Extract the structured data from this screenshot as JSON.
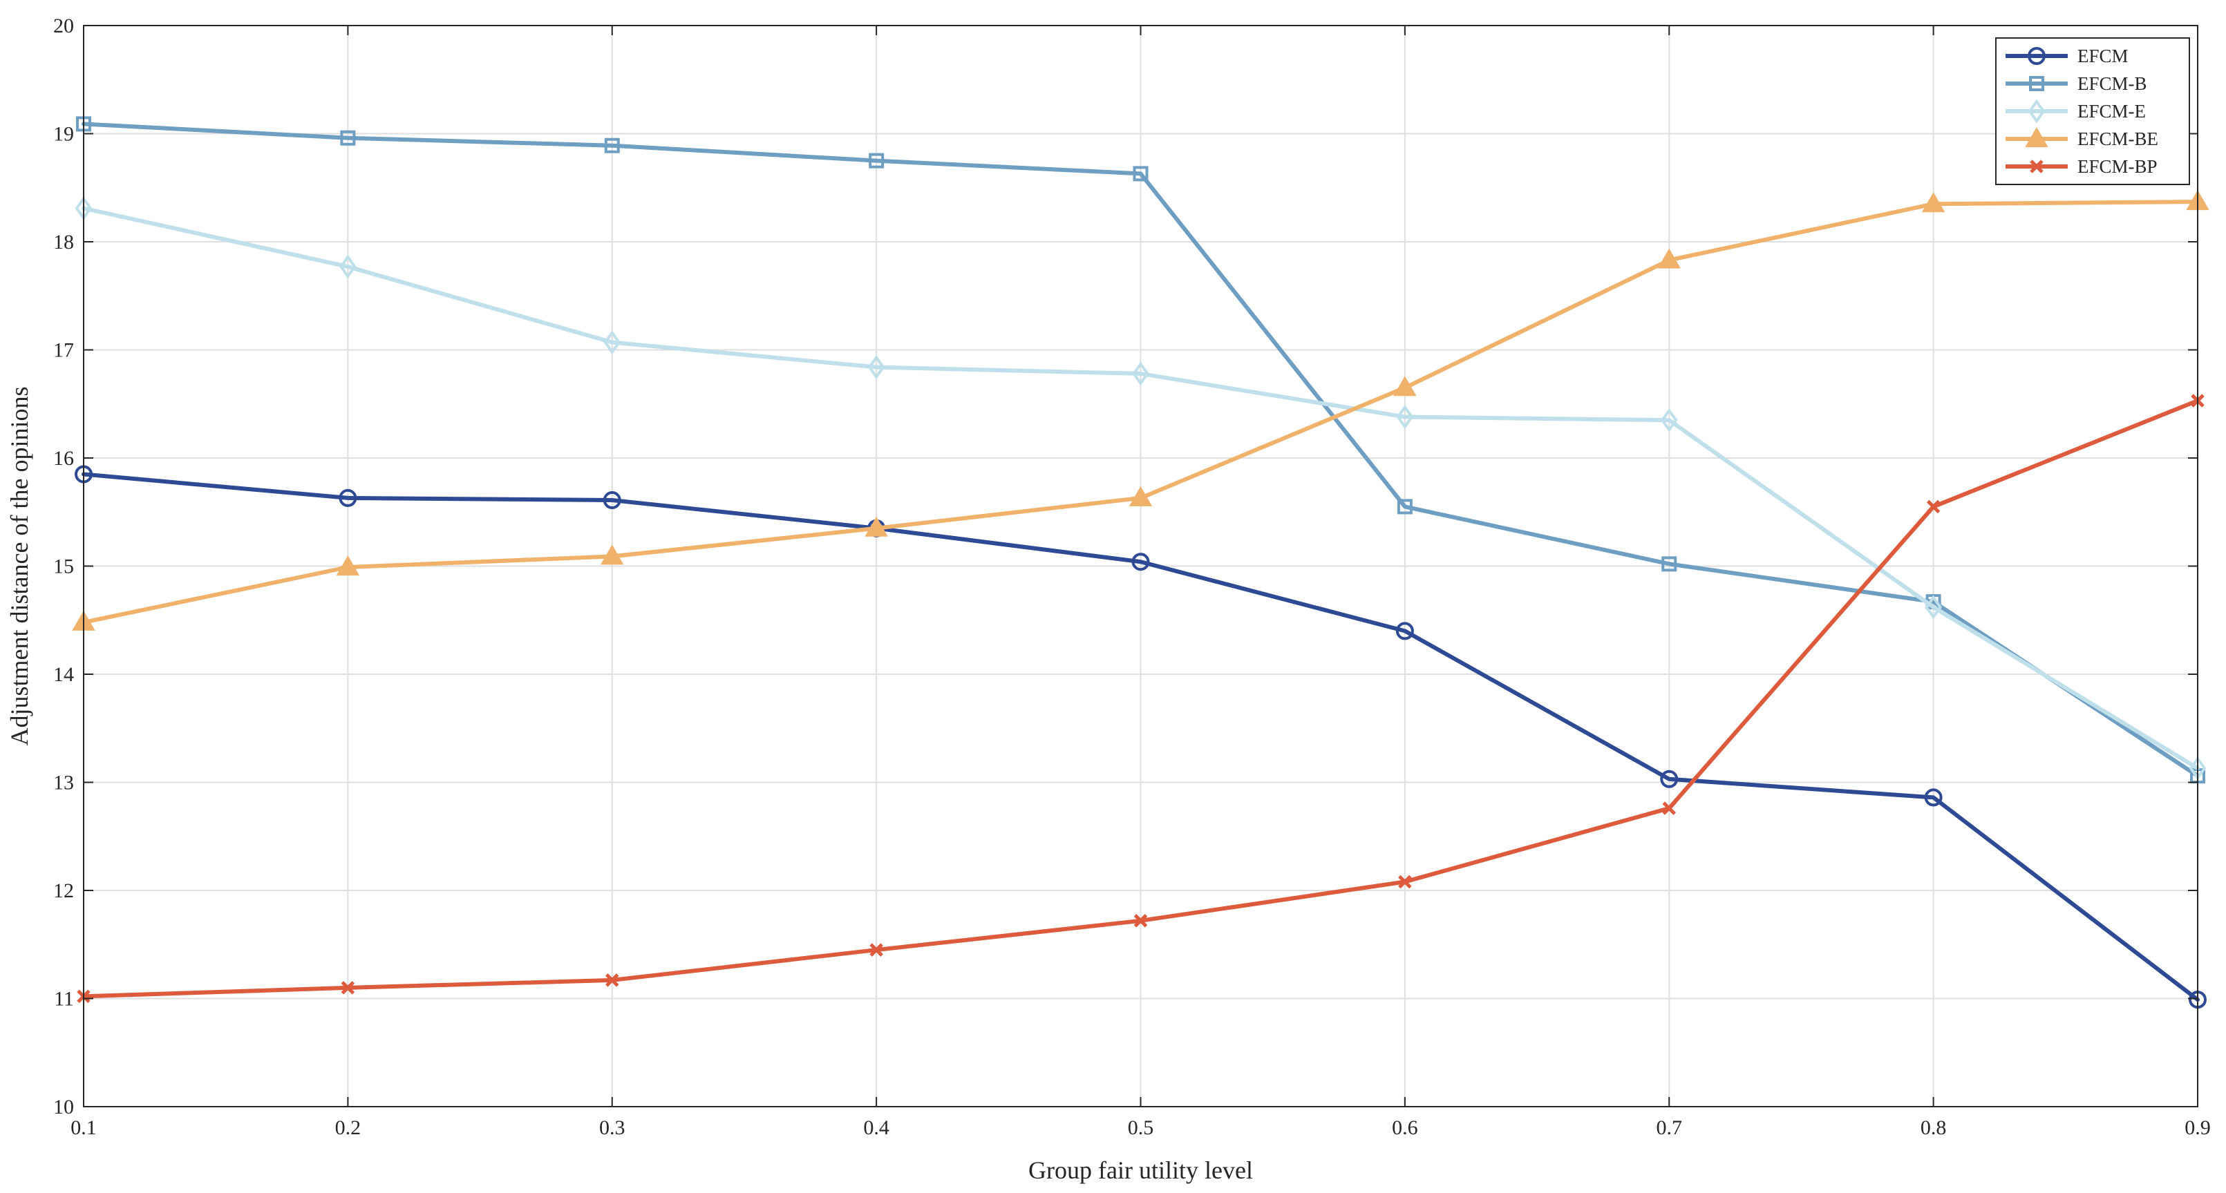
{
  "chart_data": {
    "type": "line",
    "title": "",
    "xlabel": "Group fair utility level",
    "ylabel": "Adjustment distance of the opinions",
    "x": [
      0.1,
      0.2,
      0.3,
      0.4,
      0.5,
      0.6,
      0.7,
      0.8,
      0.9
    ],
    "x_tick_labels": [
      "0.1",
      "0.2",
      "0.3",
      "0.4",
      "0.5",
      "0.6",
      "0.7",
      "0.8",
      "0.9"
    ],
    "y_ticks": [
      10,
      11,
      12,
      13,
      14,
      15,
      16,
      17,
      18,
      19,
      20
    ],
    "y_tick_labels": [
      "10",
      "11",
      "12",
      "13",
      "14",
      "15",
      "16",
      "17",
      "18",
      "19",
      "20"
    ],
    "xlim": [
      0.1,
      0.9
    ],
    "ylim": [
      10,
      20
    ],
    "grid": true,
    "legend_position": "top-right",
    "series": [
      {
        "name": "EFCM",
        "marker": "circle",
        "color": "#2e4a94",
        "values": [
          15.85,
          15.63,
          15.61,
          15.35,
          15.04,
          14.4,
          13.03,
          12.86,
          10.99
        ]
      },
      {
        "name": "EFCM-B",
        "marker": "square",
        "color": "#6e9fc2",
        "values": [
          19.09,
          18.96,
          18.89,
          18.75,
          18.63,
          15.55,
          15.02,
          14.67,
          13.06
        ]
      },
      {
        "name": "EFCM-E",
        "marker": "diamond",
        "color": "#bfe0ea",
        "values": [
          18.31,
          17.77,
          17.07,
          16.84,
          16.78,
          16.38,
          16.35,
          14.62,
          13.13
        ]
      },
      {
        "name": "EFCM-BE",
        "marker": "triangle",
        "color": "#f0b26a",
        "values": [
          14.48,
          14.99,
          15.09,
          15.35,
          15.63,
          16.65,
          17.83,
          18.35,
          18.37
        ]
      },
      {
        "name": "EFCM-BP",
        "marker": "x",
        "color": "#dd5b3c",
        "values": [
          11.02,
          11.1,
          11.17,
          11.45,
          11.72,
          12.08,
          12.76,
          15.55,
          16.53
        ]
      }
    ]
  }
}
